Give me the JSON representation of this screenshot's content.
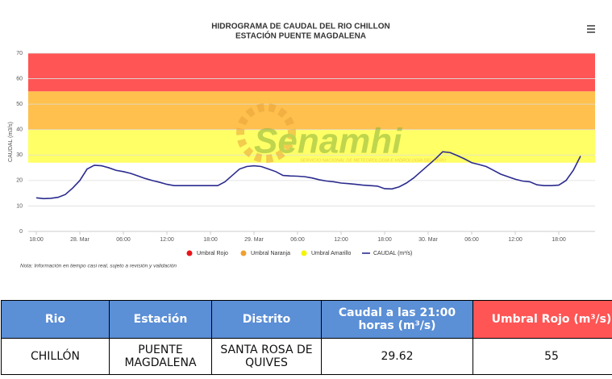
{
  "chart_data": {
    "type": "line",
    "title": "HIDROGRAMA DE CAUDAL DEL RIO CHILLON",
    "subtitle": "ESTACIÓN PUENTE MAGDALENA",
    "y_label": "CAUDAL (m3/s)",
    "note": "Nota: Información en tiempo casi real, sujeto a revisión y validación",
    "watermark": "Senamhi",
    "watermark_subtitle": "SERVICIO NACIONAL DE METEOROLOGÍA E HIDROLOGÍA DEL PERÚ",
    "categories": [
      "18:00",
      null,
      null,
      null,
      null,
      null,
      "28. Mar",
      null,
      null,
      null,
      null,
      null,
      "06:00",
      null,
      null,
      null,
      null,
      null,
      "12:00",
      null,
      null,
      null,
      null,
      null,
      "18:00",
      null,
      null,
      null,
      null,
      null,
      "29. Mar",
      null,
      null,
      null,
      null,
      null,
      "06:00",
      null,
      null,
      null,
      null,
      null,
      "12:00",
      null,
      null,
      null,
      null,
      null,
      "18:00",
      null,
      null,
      null,
      null,
      null,
      "30. Mar",
      null,
      null,
      null,
      null,
      null,
      "06:00",
      null,
      null,
      null,
      null,
      null,
      "12:00",
      null,
      null,
      null,
      null,
      null,
      "18:00",
      null,
      null,
      null
    ],
    "bands": [
      {
        "name": "Umbral Rojo",
        "color": "#ff5555",
        "from": 55,
        "to": 70
      },
      {
        "name": "Umbral Naranja",
        "color": "#ffc04d",
        "from": 40,
        "to": 55
      },
      {
        "name": "Umbral Amarillo",
        "color": "#ffff66",
        "from": 27,
        "to": 40
      }
    ],
    "series": [
      {
        "name": "CAUDAL (m³/s)",
        "color": "#2b2b8f",
        "values": [
          13.2,
          12.9,
          13.0,
          13.4,
          14.5,
          17,
          20,
          24.5,
          26,
          25.8,
          25,
          24,
          23.5,
          22.8,
          21.8,
          20.8,
          20,
          19.3,
          18.5,
          18,
          18,
          18,
          18,
          18,
          18,
          18,
          19.5,
          22,
          24.5,
          25.5,
          25.8,
          25.5,
          24.5,
          23.5,
          22,
          21.8,
          21.7,
          21.5,
          21,
          20.3,
          19.8,
          19.5,
          19,
          18.8,
          18.5,
          18.2,
          18,
          17.8,
          16.8,
          16.7,
          17.5,
          19,
          21,
          23.5,
          26,
          28.5,
          31.3,
          31,
          29.8,
          28.5,
          27,
          26.3,
          25.5,
          24,
          22.5,
          21.5,
          20.5,
          19.8,
          19.5,
          18.3,
          18,
          18,
          18.2,
          20,
          24,
          29.62
        ]
      }
    ],
    "ylim": [
      0,
      70
    ],
    "yticks": [
      0,
      10,
      20,
      30,
      40,
      50,
      60,
      70
    ],
    "grid": true
  },
  "table": {
    "header": [
      "Rio",
      "Estación",
      "Distrito",
      "Caudal a las 21:00 horas (m³/s)",
      "Umbral Rojo (m³/s)"
    ],
    "rows": [
      [
        "CHILLÓN",
        "PUENTE MAGDALENA",
        "SANTA ROSA DE QUIVES",
        "29.62",
        "55"
      ]
    ]
  }
}
